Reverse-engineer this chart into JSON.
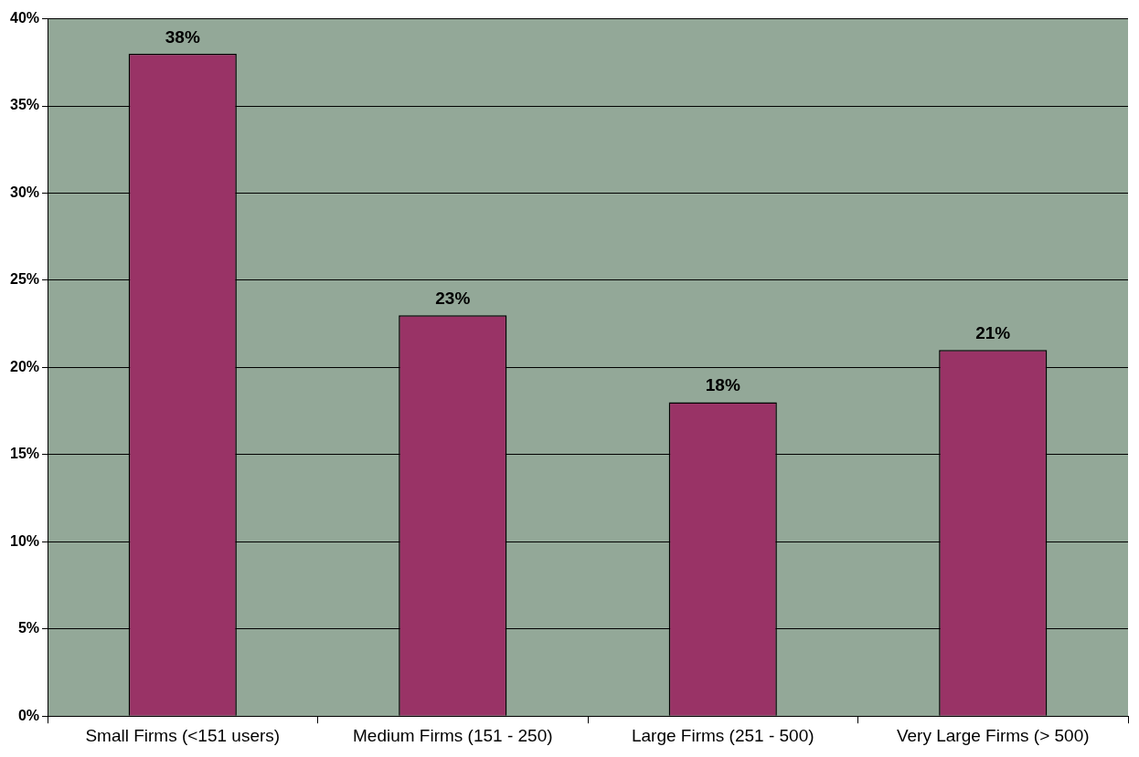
{
  "chart_data": {
    "type": "bar",
    "categories": [
      "Small Firms (<151 users)",
      "Medium Firms (151 - 250)",
      "Large Firms (251 - 500)",
      "Very Large Firms (> 500)"
    ],
    "values": [
      38,
      23,
      18,
      21
    ],
    "color": "#993366",
    "value_labels": [
      "38%",
      "23%",
      "18%",
      "21%"
    ],
    "ylim": [
      0,
      40
    ],
    "yticks": [
      {
        "value": 0,
        "label": "0%"
      },
      {
        "value": 5,
        "label": "5%"
      },
      {
        "value": 10,
        "label": "10%"
      },
      {
        "value": 15,
        "label": "15%"
      },
      {
        "value": 20,
        "label": "20%"
      },
      {
        "value": 25,
        "label": "25%"
      },
      {
        "value": 30,
        "label": "30%"
      },
      {
        "value": 35,
        "label": "35%"
      },
      {
        "value": 40,
        "label": "40%"
      }
    ],
    "grid": "y",
    "legend": false
  }
}
